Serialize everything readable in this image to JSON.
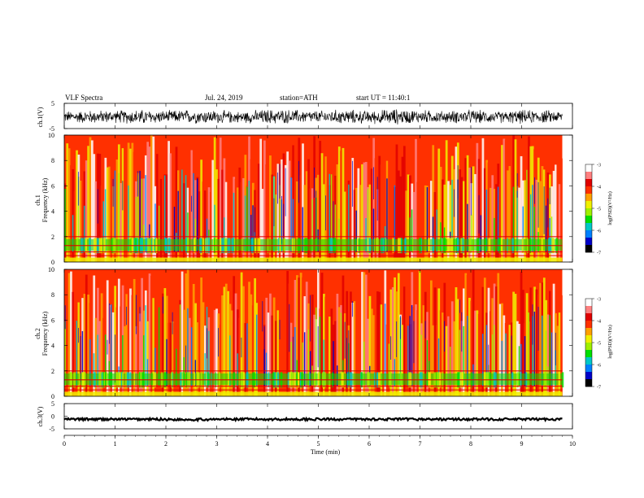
{
  "header": {
    "title": "VLF  Spectra",
    "date": "Jul.  24,  2019",
    "station": "station=ATH",
    "start": "start  UT  =    11:40:1"
  },
  "chart_data": [
    {
      "type": "line",
      "name": "ch1-waveform",
      "ylabel": "ch.1(V)",
      "ylim": [
        -5,
        5
      ],
      "yticks": [
        "5",
        "-5"
      ],
      "xlim": [
        0,
        9.8
      ],
      "x": [
        0,
        0.5,
        1,
        1.5,
        2,
        2.5,
        3,
        3.5,
        4,
        4.5,
        5,
        5.5,
        6,
        6.5,
        7,
        7.5,
        8,
        8.5,
        9,
        9.5,
        9.8
      ],
      "y": [
        -0.3,
        -0.4,
        -0.2,
        -0.5,
        -0.3,
        -0.2,
        -0.4,
        -0.5,
        -0.3,
        -0.2,
        -0.4,
        -0.3,
        -0.5,
        -0.3,
        -0.2,
        -0.4,
        -0.3,
        -0.5,
        -0.4,
        -0.3,
        -0.3
      ],
      "amplitude_envelope": [
        2.5,
        3.0,
        2.8,
        3.5,
        2.7,
        3.2,
        3.0,
        2.6,
        3.4,
        3.1,
        2.8,
        3.3,
        2.9,
        3.6,
        3.0,
        2.7,
        3.2,
        2.6,
        3.1,
        2.9,
        2.5
      ]
    },
    {
      "type": "heatmap",
      "name": "ch1-spectrogram",
      "ylabel": "Frequency (kHz)",
      "channel_label": "ch.1",
      "ylim": [
        0,
        10
      ],
      "yticks": [
        "0",
        "2",
        "4",
        "6",
        "8",
        "10"
      ],
      "xlim": [
        0,
        9.8
      ],
      "colorbar": {
        "label": "log(PSD)(V²/Hz)",
        "range": [
          -7,
          -3
        ],
        "ticks": [
          "-3",
          "-4",
          "-5",
          "-6",
          "-7"
        ]
      }
    },
    {
      "type": "heatmap",
      "name": "ch2-spectrogram",
      "ylabel": "Frequency (kHz)",
      "channel_label": "ch.2",
      "ylim": [
        0,
        10
      ],
      "yticks": [
        "0",
        "2",
        "4",
        "6",
        "8",
        "10"
      ],
      "xlim": [
        0,
        9.8
      ],
      "colorbar": {
        "label": "log(PSD)(V²/Hz)",
        "range": [
          -7,
          -3
        ],
        "ticks": [
          "-3",
          "-4",
          "-5",
          "-6",
          "-7"
        ]
      }
    },
    {
      "type": "line",
      "name": "ch3-signal",
      "ylabel": "ch.3(V)",
      "ylim": [
        -5,
        5
      ],
      "yticks": [
        "5",
        "0",
        "-5"
      ],
      "xlim": [
        0,
        9.8
      ],
      "x": [
        0,
        1,
        2,
        3,
        4,
        5,
        6,
        7,
        8,
        9,
        9.8
      ],
      "y": [
        -1.2,
        -1.2,
        -1.3,
        -1.2,
        -1.2,
        -1.2,
        -1.2,
        -1.2,
        -1.2,
        -1.2,
        -1.2
      ]
    }
  ],
  "xaxis": {
    "label": "Time  (min)",
    "ticks": [
      "0",
      "1",
      "2",
      "3",
      "4",
      "5",
      "6",
      "7",
      "8",
      "9",
      "10"
    ],
    "range": [
      0,
      10
    ]
  },
  "colors": {
    "palette": [
      "#000000",
      "#0000c8",
      "#0080ff",
      "#00c8c8",
      "#00e000",
      "#a0f000",
      "#f0f000",
      "#ffa000",
      "#ff3000",
      "#e00000",
      "#ff8080",
      "#ffffff"
    ]
  }
}
